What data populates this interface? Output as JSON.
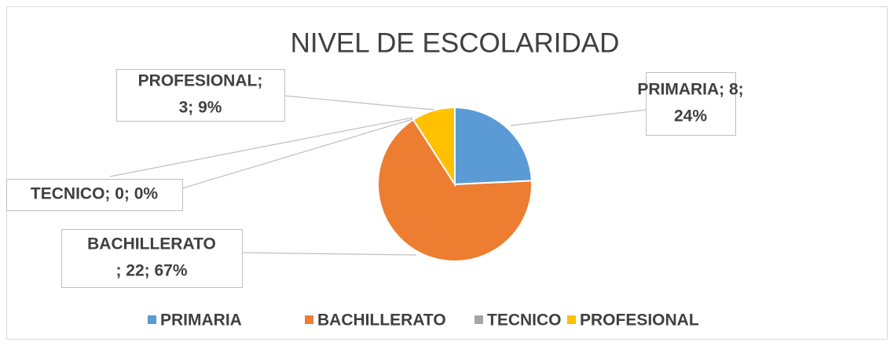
{
  "chart_data": {
    "type": "pie",
    "title": "NIVEL DE ESCOLARIDAD",
    "categories": [
      "PRIMARIA",
      "BACHILLERATO",
      "TECNICO",
      "PROFESIONAL"
    ],
    "values": [
      8,
      22,
      0,
      3
    ],
    "value_labels": [
      [
        "PRIMARIA; 8;",
        "24%"
      ],
      [
        "BACHILLERATO",
        "; 22; 67%"
      ],
      [
        "TECNICO; 0; 0%"
      ],
      [
        "PROFESIONAL;",
        "3; 9%"
      ]
    ],
    "colors": [
      "#5b9bd5",
      "#ed7d31",
      "#a5a5a5",
      "#ffc000"
    ],
    "legend": "bottom"
  }
}
